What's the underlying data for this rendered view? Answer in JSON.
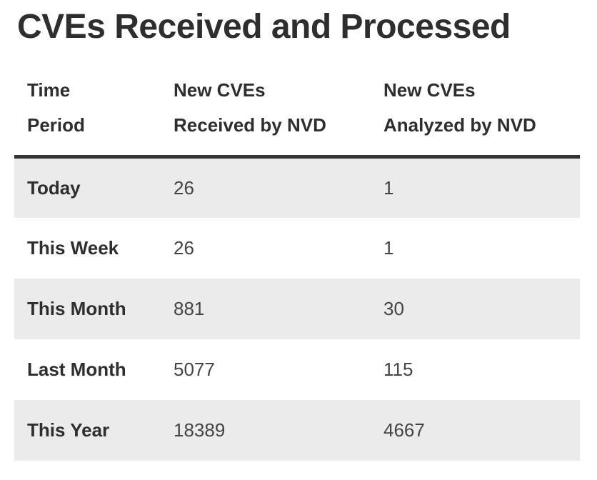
{
  "page": {
    "title": "CVEs Received and Processed"
  },
  "table": {
    "headers": [
      {
        "line1": "Time",
        "line2": "Period"
      },
      {
        "line1": "New CVEs",
        "line2": "Received by NVD"
      },
      {
        "line1": "New CVEs",
        "line2": "Analyzed by NVD"
      }
    ],
    "rows": [
      {
        "period": "Today",
        "received": "26",
        "analyzed": "1"
      },
      {
        "period": "This Week",
        "received": "26",
        "analyzed": "1"
      },
      {
        "period": "This Month",
        "received": "881",
        "analyzed": "30"
      },
      {
        "period": "Last Month",
        "received": "5077",
        "analyzed": "115"
      },
      {
        "period": "This Year",
        "received": "18389",
        "analyzed": "4667"
      }
    ]
  },
  "colors": {
    "text_dark": "#2e2e2e",
    "text_body": "#444444",
    "row_stripe": "#ebebeb",
    "header_border": "#333333",
    "background": "#ffffff"
  },
  "chart_data": {
    "type": "table",
    "title": "CVEs Received and Processed",
    "columns": [
      "Time Period",
      "New CVEs Received by NVD",
      "New CVEs Analyzed by NVD"
    ],
    "categories": [
      "Today",
      "This Week",
      "This Month",
      "Last Month",
      "This Year"
    ],
    "series": [
      {
        "name": "New CVEs Received by NVD",
        "values": [
          26,
          26,
          881,
          5077,
          18389
        ]
      },
      {
        "name": "New CVEs Analyzed by NVD",
        "values": [
          1,
          1,
          30,
          115,
          4667
        ]
      }
    ],
    "layout_hints": {
      "striped_rows": true,
      "header_rule": "thick dark bottom border",
      "grid": false
    }
  }
}
